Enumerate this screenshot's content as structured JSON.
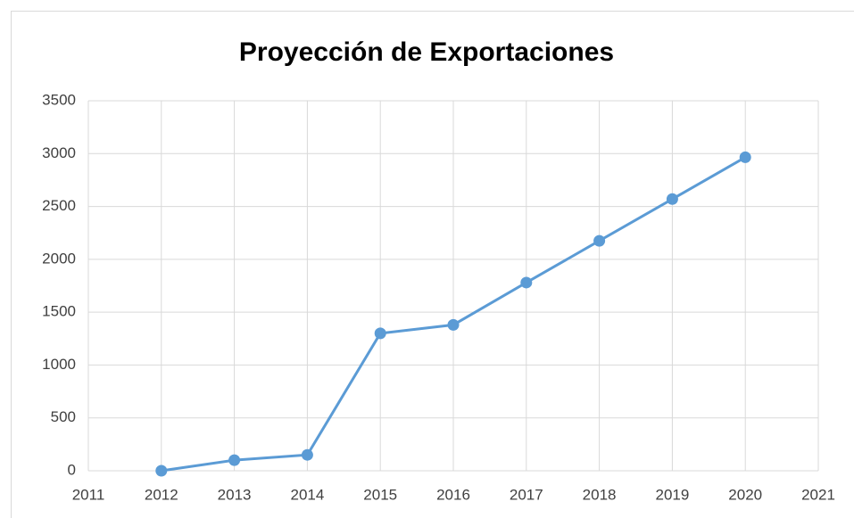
{
  "chart_data": {
    "type": "line",
    "title": "Proyección de Exportaciones",
    "x": [
      2012,
      2013,
      2014,
      2015,
      2016,
      2017,
      2018,
      2019,
      2020
    ],
    "series": [
      {
        "name": "Exportaciones",
        "color": "#5b9bd5",
        "values": [
          0,
          100,
          150,
          1300,
          1380,
          1780,
          2175,
          2570,
          2965
        ]
      }
    ],
    "xlim": [
      2011,
      2021
    ],
    "xticks": [
      2011,
      2012,
      2013,
      2014,
      2015,
      2016,
      2017,
      2018,
      2019,
      2020,
      2021
    ],
    "ylim": [
      0,
      3500
    ],
    "yticks": [
      0,
      500,
      1000,
      1500,
      2000,
      2500,
      3000,
      3500
    ],
    "grid": true
  }
}
